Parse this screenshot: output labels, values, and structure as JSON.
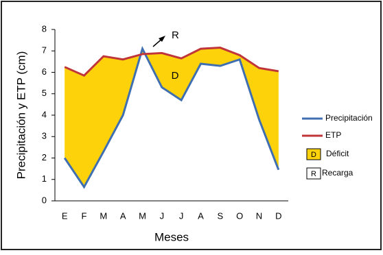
{
  "chart_data": {
    "type": "line",
    "ylabel": "Precipitación y ETP (cm)",
    "xlabel": "Meses",
    "categories": [
      "E",
      "F",
      "M",
      "A",
      "M",
      "J",
      "J",
      "A",
      "S",
      "O",
      "N",
      "D"
    ],
    "series": [
      {
        "name": "Precipitación",
        "color": "#3f6fb0",
        "values": [
          2.0,
          0.65,
          2.3,
          4.0,
          7.1,
          5.3,
          4.7,
          6.4,
          6.3,
          6.6,
          3.8,
          1.45
        ]
      },
      {
        "name": "ETP",
        "color": "#c0353a",
        "values": [
          6.25,
          5.85,
          6.75,
          6.6,
          6.85,
          6.9,
          6.65,
          7.1,
          7.15,
          6.8,
          6.2,
          6.05
        ]
      }
    ],
    "fill_color": "#fdd20a",
    "legend_extra": [
      {
        "symbol": "D",
        "label": "Déficit"
      },
      {
        "symbol": "R",
        "label": "Recarga"
      }
    ],
    "annotations": [
      "D",
      "R"
    ],
    "ylim": [
      0,
      8
    ],
    "yticks": [
      0,
      1,
      2,
      3,
      4,
      5,
      6,
      7,
      8
    ]
  }
}
